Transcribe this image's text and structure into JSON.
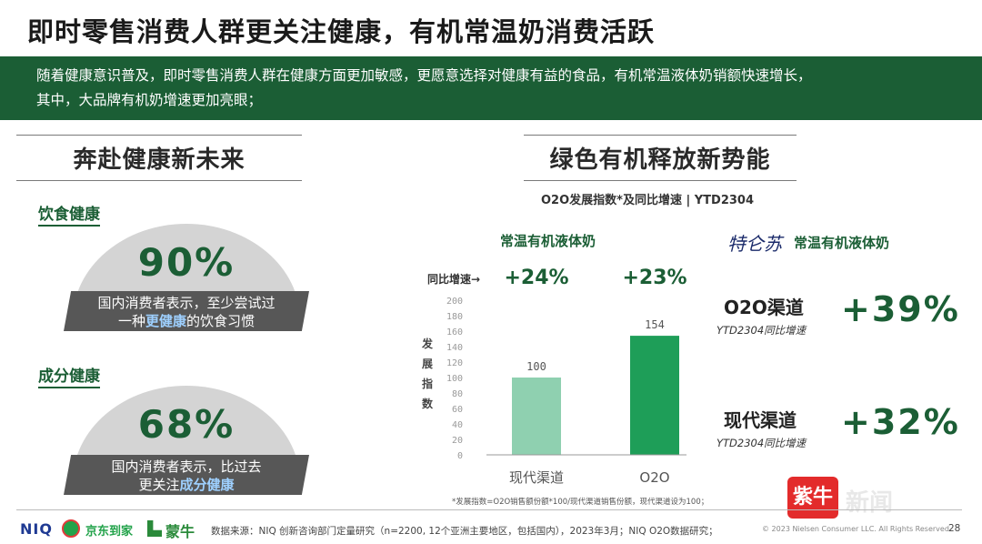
{
  "title": "即时零售消费人群更关注健康，有机常温奶消费活跃",
  "banner": {
    "line1": "随着健康意识普及，即时零售消费人群在健康方面更加敏感，更愿意选择对健康有益的食品，有机常温液体奶销额快速增长，",
    "line2": "其中，大品牌有机奶增速更加亮眼；"
  },
  "left": {
    "heading": "奔赴健康新未来",
    "blocks": [
      {
        "label": "饮食健康",
        "pct": "90%",
        "text_pre": "国内消费者表示，至少尝试过",
        "text_line2_pre": "一种",
        "highlight": "更健康",
        "text_line2_post": "的饮食习惯"
      },
      {
        "label": "成分健康",
        "pct": "68%",
        "text_pre": "国内消费者表示，比过去",
        "text_line2_pre": "更关注",
        "highlight": "成分健康",
        "text_line2_post": ""
      }
    ]
  },
  "right": {
    "heading": "绿色有机释放新势能",
    "chart_caption": "O2O发展指数*及同比增速 | YTD2304",
    "chart_brand_label": "常温有机液体奶",
    "yoy_label": "同比增速→",
    "logo_text": "特仑苏",
    "logo_brand_label": "常温有机液体奶",
    "channels": [
      {
        "label": "O2O渠道",
        "note": "YTD2304同比增速",
        "value": "+39%"
      },
      {
        "label": "现代渠道",
        "note": "YTD2304同比增速",
        "value": "+32%"
      }
    ],
    "footnote": "*发展指数=O2O销售额份额*100/现代渠道销售份额，现代渠道设为100；"
  },
  "chart_data": {
    "type": "bar",
    "categories": [
      "现代渠道",
      "O2O"
    ],
    "values": [
      100,
      154
    ],
    "growth_labels": [
      "+24%",
      "+23%"
    ],
    "colors": [
      "#8fd0b0",
      "#1e9e58"
    ],
    "ylabel": "发展指数",
    "ylim": [
      0,
      200
    ],
    "yticks": [
      0,
      20,
      40,
      60,
      80,
      100,
      120,
      140,
      160,
      180,
      200
    ],
    "grid": false
  },
  "footer": {
    "niq": "NIQ",
    "jd": "京东到家",
    "mengniu": "蒙牛",
    "source": "数据来源：NIQ 创新咨询部门定量研究（n=2200, 12个亚洲主要地区，包括国内），2023年3月；NIQ O2O数据研究；",
    "copyright": "© 2023 Nielsen Consumer LLC. All Rights Reserved.",
    "page": "28"
  },
  "watermark": {
    "badge": "紫牛",
    "text": "新闻"
  }
}
